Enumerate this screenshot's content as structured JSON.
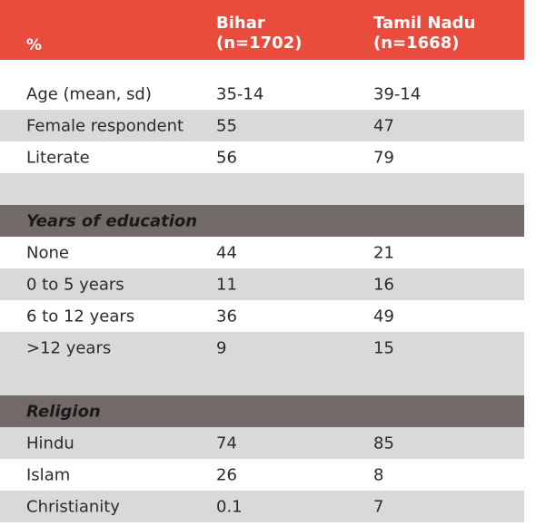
{
  "header": {
    "pct": "%",
    "col1_line1": "Bihar",
    "col1_line2": "(n=1702)",
    "col2_line1": "Tamil Nadu",
    "col2_line2": "(n=1668)"
  },
  "rows_top": [
    {
      "label": "Age (mean, sd)",
      "bihar": "35-14",
      "tn": "39-14"
    },
    {
      "label": "Female respondent",
      "bihar": "55",
      "tn": "47"
    },
    {
      "label": "Literate",
      "bihar": "56",
      "tn": "79"
    }
  ],
  "section_education": {
    "title": "Years of education",
    "rows": [
      {
        "label": "None",
        "bihar": "44",
        "tn": "21"
      },
      {
        "label": "0 to 5 years",
        "bihar": "11",
        "tn": "16"
      },
      {
        "label": "6 to 12 years",
        "bihar": "36",
        "tn": "49"
      },
      {
        "label": ">12 years",
        "bihar": "9",
        "tn": "15"
      }
    ]
  },
  "section_religion": {
    "title": "Religion",
    "rows": [
      {
        "label": "Hindu",
        "bihar": "74",
        "tn": "85"
      },
      {
        "label": "Islam",
        "bihar": "26",
        "tn": "8"
      },
      {
        "label": "Christianity",
        "bihar": "0.1",
        "tn": "7"
      }
    ]
  },
  "colors": {
    "header": "#e94b3c",
    "section": "#726a68",
    "stripe": "#d9d9d9"
  }
}
